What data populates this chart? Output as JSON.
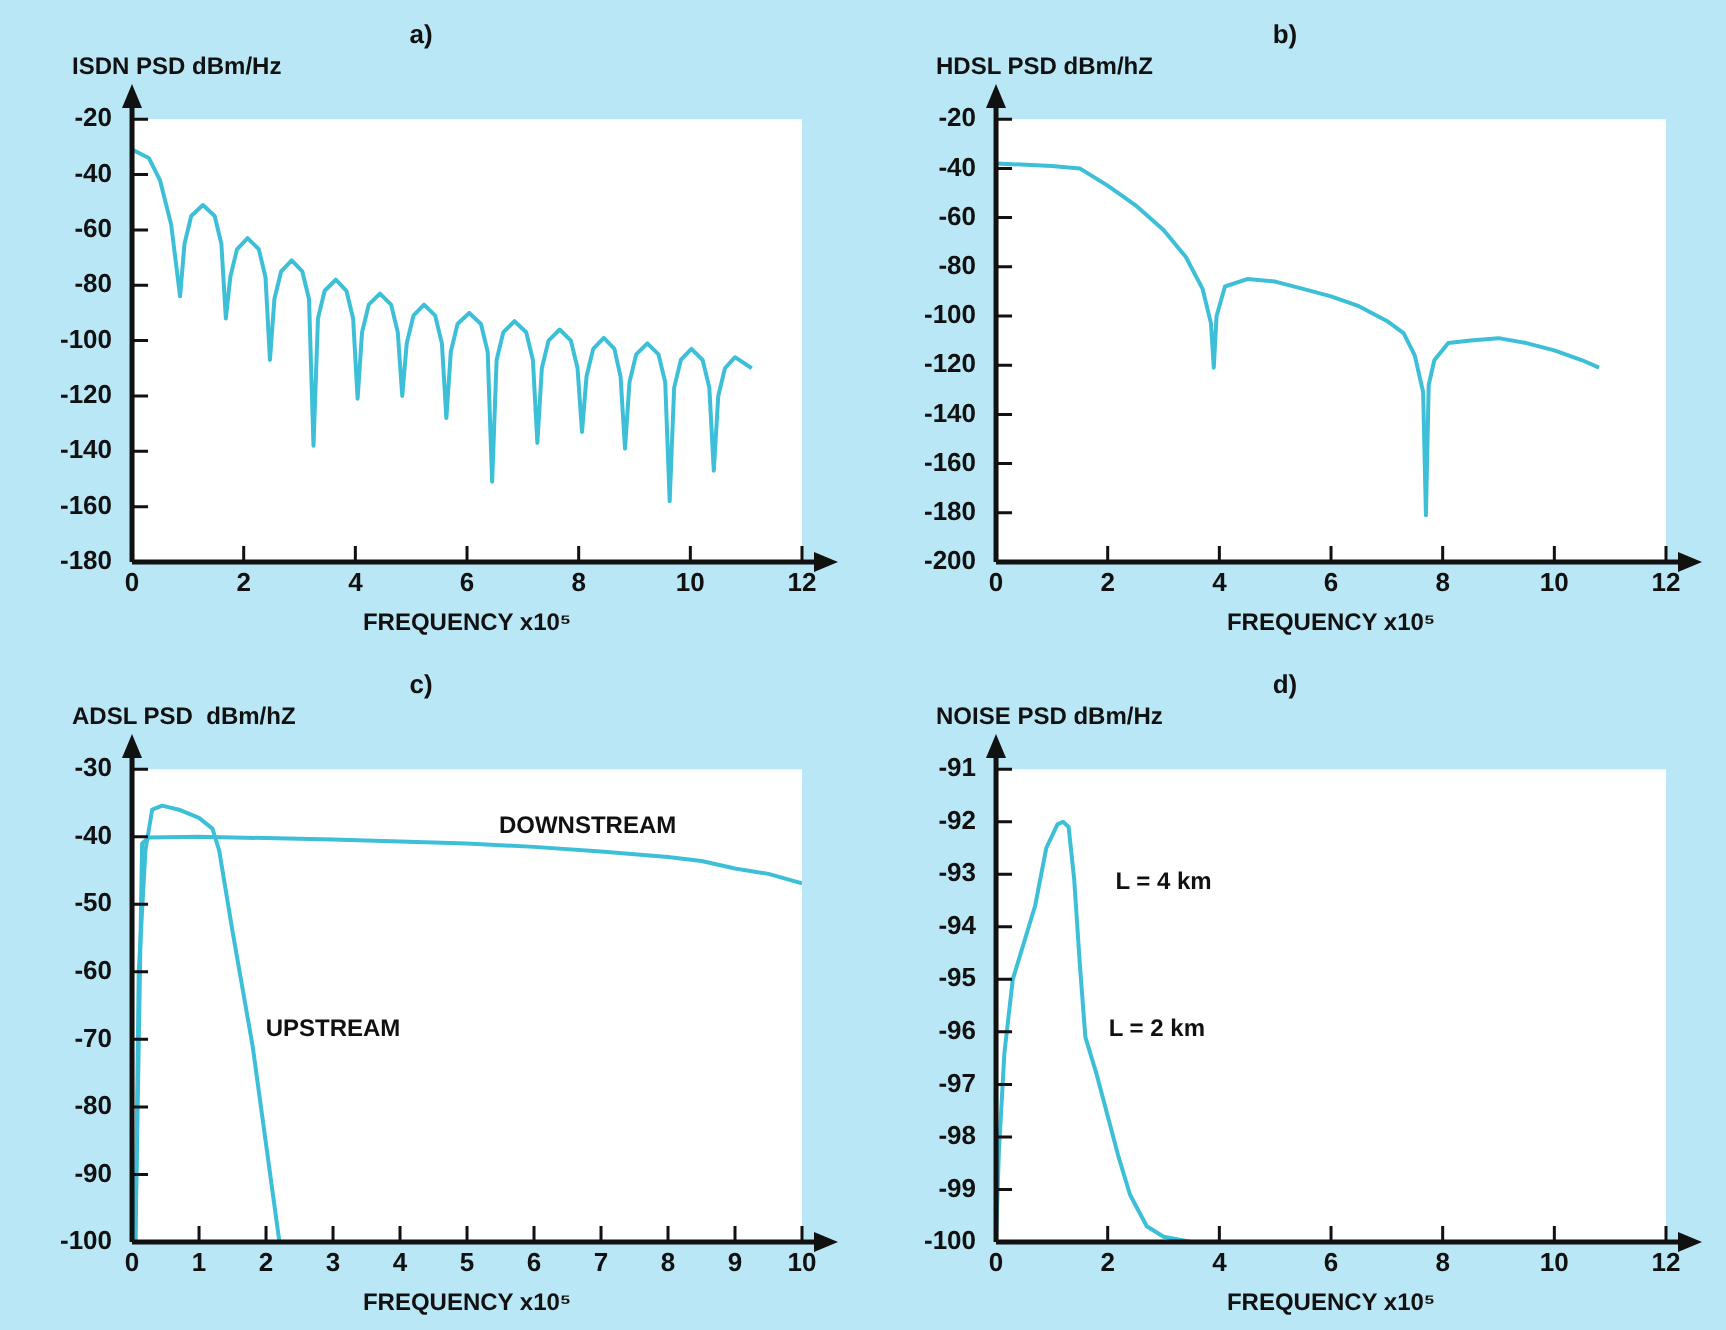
{
  "chart_data": [
    {
      "type": "line",
      "title": "a)",
      "ylabel": "ISDN PSD dBm/Hz",
      "xlabel": "FREQUENCY x10⁵",
      "xlim": [
        0,
        12
      ],
      "xticks": [
        0,
        2,
        4,
        6,
        8,
        10,
        12
      ],
      "ylim": [
        -180,
        -20
      ],
      "yticks": [
        -180,
        -160,
        -140,
        -120,
        -100,
        -80,
        -60,
        -40,
        -20
      ],
      "grid": false,
      "legend": false,
      "marker": "none",
      "line_style": "solid",
      "series": [
        {
          "color": "#3dbfd8",
          "x": [
            0,
            0.3,
            0.5,
            0.7,
            0.86,
            0.94,
            1.06,
            1.27,
            1.48,
            1.6,
            1.68,
            1.76,
            1.88,
            2.07,
            2.27,
            2.39,
            2.47,
            2.55,
            2.67,
            2.86,
            3.05,
            3.17,
            3.25,
            3.33,
            3.45,
            3.65,
            3.84,
            3.96,
            4.04,
            4.12,
            4.24,
            4.44,
            4.64,
            4.76,
            4.84,
            4.92,
            5.04,
            5.23,
            5.43,
            5.55,
            5.63,
            5.71,
            5.83,
            6.04,
            6.25,
            6.37,
            6.45,
            6.53,
            6.65,
            6.85,
            7.06,
            7.18,
            7.26,
            7.34,
            7.46,
            7.66,
            7.86,
            7.98,
            8.06,
            8.14,
            8.26,
            8.45,
            8.64,
            8.75,
            8.83,
            8.91,
            9.03,
            9.23,
            9.43,
            9.55,
            9.63,
            9.71,
            9.83,
            10.02,
            10.22,
            10.34,
            10.42,
            10.5,
            10.62,
            10.8,
            11.1
          ],
          "values": [
            -31,
            -34,
            -42,
            -58,
            -84,
            -65,
            -55,
            -51,
            -55,
            -65,
            -92,
            -77,
            -67,
            -63,
            -67,
            -77,
            -107,
            -85,
            -75,
            -71,
            -75,
            -85,
            -138,
            -92,
            -82,
            -78,
            -82,
            -92,
            -121,
            -97,
            -87,
            -83,
            -87,
            -97,
            -120,
            -101,
            -91,
            -87,
            -91,
            -101,
            -128,
            -104,
            -94,
            -90,
            -94,
            -104,
            -151,
            -107,
            -97,
            -93,
            -97,
            -107,
            -137,
            -110,
            -100,
            -96,
            -100,
            -110,
            -133,
            -113,
            -103,
            -99,
            -103,
            -113,
            -139,
            -115,
            -105,
            -101,
            -105,
            -115,
            -158,
            -117,
            -107,
            -103,
            -107,
            -117,
            -147,
            -120,
            -110,
            -106,
            -110
          ]
        }
      ]
    },
    {
      "type": "line",
      "title": "b)",
      "ylabel": "HDSL PSD dBm/hZ",
      "xlabel": "FREQUENCY x10⁵",
      "xlim": [
        0,
        12
      ],
      "xticks": [
        0,
        2,
        4,
        6,
        8,
        10,
        12
      ],
      "ylim": [
        -200,
        -20
      ],
      "yticks": [
        -200,
        -180,
        -160,
        -140,
        -120,
        -100,
        -80,
        -60,
        -40,
        -20
      ],
      "grid": false,
      "legend": false,
      "marker": "none",
      "line_style": "solid",
      "series": [
        {
          "color": "#3dbfd8",
          "x": [
            0,
            1,
            1.5,
            2,
            2.5,
            3,
            3.4,
            3.7,
            3.85,
            3.9,
            3.95,
            4.1,
            4.5,
            5,
            5.5,
            6,
            6.5,
            7,
            7.3,
            7.5,
            7.65,
            7.7,
            7.75,
            7.85,
            8.1,
            8.5,
            9,
            9.5,
            10,
            10.5,
            10.8
          ],
          "values": [
            -38,
            -39,
            -40,
            -47,
            -55,
            -65,
            -76,
            -89,
            -103,
            -121,
            -100,
            -88,
            -85,
            -86,
            -89,
            -92,
            -96,
            -102,
            -107,
            -116,
            -131,
            -181,
            -128,
            -118,
            -111,
            -110,
            -109,
            -111,
            -114,
            -118,
            -121
          ]
        }
      ]
    },
    {
      "type": "line",
      "title": "c)",
      "ylabel": "ADSL PSD  dBm/hZ",
      "xlabel": "FREQUENCY x10⁵",
      "xlim": [
        0,
        10
      ],
      "xticks": [
        0,
        1,
        2,
        3,
        4,
        5,
        6,
        7,
        8,
        9,
        10
      ],
      "ylim": [
        -100,
        -30
      ],
      "yticks": [
        -100,
        -90,
        -80,
        -70,
        -60,
        -50,
        -40,
        -30
      ],
      "grid": false,
      "legend": false,
      "marker": "none",
      "line_style": "solid",
      "annotations": [
        "DOWNSTREAM",
        "UPSTREAM"
      ],
      "series": [
        {
          "color": "#3dbfd8",
          "x": [
            0.05,
            0.1,
            0.2,
            0.3,
            0.45,
            0.7,
            1,
            1.2,
            1.3,
            1.5,
            1.8,
            2.2
          ],
          "values": [
            -100,
            -60,
            -42,
            -36,
            -35.4,
            -36,
            -37.2,
            -38.8,
            -42,
            -54,
            -71,
            -100
          ]
        },
        {
          "color": "#3dbfd8",
          "x": [
            0.05,
            0.15,
            0.25,
            1,
            3,
            5,
            6,
            7,
            8,
            8.5,
            9,
            9.5,
            10
          ],
          "values": [
            -100,
            -41,
            -40.1,
            -40,
            -40.4,
            -41,
            -41.5,
            -42.2,
            -43,
            -43.6,
            -44.7,
            -45.5,
            -46.9
          ]
        }
      ]
    },
    {
      "type": "line",
      "title": "d)",
      "ylabel": "NOISE PSD dBm/Hz",
      "xlabel": "FREQUENCY x10⁵",
      "xlim": [
        0,
        12
      ],
      "xticks": [
        0,
        2,
        4,
        6,
        8,
        10,
        12
      ],
      "ylim": [
        -100,
        -91
      ],
      "yticks": [
        -100,
        -99,
        -98,
        -97,
        -96,
        -95,
        -94,
        -93,
        -92,
        -91
      ],
      "grid": false,
      "legend": false,
      "marker": "none",
      "line_style": "solid",
      "annotations": [
        "L = 4 km",
        "L = 2 km"
      ],
      "series": [
        {
          "color": "#3dbfd8",
          "x": [
            0,
            0.05,
            0.15,
            0.3,
            0.5,
            0.7,
            0.9,
            1.1,
            1.2,
            1.3,
            1.4,
            1.5,
            1.6,
            1.8,
            2,
            2.2,
            2.4,
            2.7,
            3,
            3.5,
            4
          ],
          "values": [
            -100,
            -98.3,
            -96.4,
            -95,
            -94.3,
            -93.6,
            -92.5,
            -92.05,
            -92,
            -92.1,
            -93.1,
            -94.7,
            -96.1,
            -96.8,
            -97.6,
            -98.4,
            -99.1,
            -99.7,
            -99.9,
            -100,
            -100
          ]
        }
      ]
    }
  ]
}
